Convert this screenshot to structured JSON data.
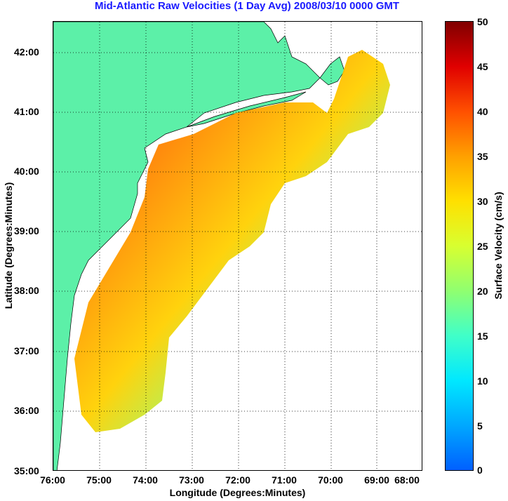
{
  "title": "Mid-Atlantic Raw Velocities (1 Day Avg) 2008/03/10 0000 GMT",
  "xlabel": "Longitude (Degrees:Minutes)",
  "ylabel": "Latitude (Degrees:Minutes)",
  "x_ticks": [
    "76:00",
    "75:00",
    "74:00",
    "73:00",
    "72:00",
    "71:00",
    "70:00",
    "69:00",
    "68:00"
  ],
  "y_ticks": [
    "42:00",
    "41:00",
    "40:00",
    "39:00",
    "38:00",
    "37:00",
    "36:00",
    "35:00"
  ],
  "colorbar": {
    "label": "Surface Velocity (cm/s)",
    "ticks": [
      "50",
      "45",
      "40",
      "35",
      "30",
      "25",
      "20",
      "15",
      "10",
      "5",
      "0"
    ]
  },
  "colors": {
    "land": "#5cf0a8",
    "title": "#1a1aff"
  }
}
